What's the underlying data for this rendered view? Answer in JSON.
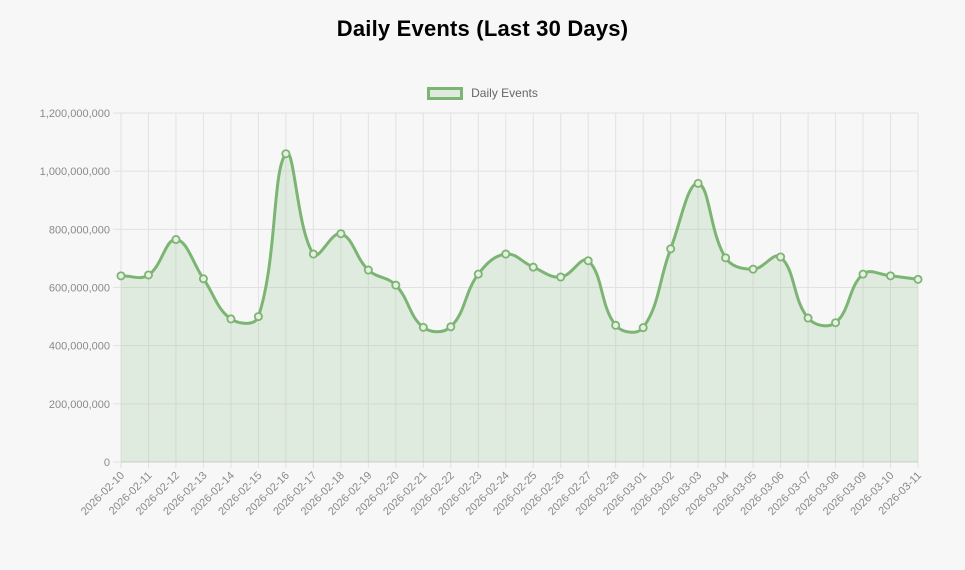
{
  "page": {
    "background": "#f7f7f7"
  },
  "chart_data": {
    "type": "area",
    "title": "Daily Events (Last 30 Days)",
    "legend_position": "top",
    "grid": true,
    "xlabel": "",
    "ylabel": "",
    "ylim": [
      0,
      1200000000
    ],
    "y_tick_step": 200000000,
    "y_tick_labels": [
      "0",
      "200,000,000",
      "400,000,000",
      "600,000,000",
      "800,000,000",
      "1,000,000,000",
      "1,200,000,000"
    ],
    "categories": [
      "2026-02-10",
      "2026-02-11",
      "2026-02-12",
      "2026-02-13",
      "2026-02-14",
      "2026-02-15",
      "2026-02-16",
      "2026-02-17",
      "2026-02-18",
      "2026-02-19",
      "2026-02-20",
      "2026-02-21",
      "2026-02-22",
      "2026-02-23",
      "2026-02-24",
      "2026-02-25",
      "2026-02-26",
      "2026-02-27",
      "2026-02-28",
      "2026-03-01",
      "2026-03-02",
      "2026-03-03",
      "2026-03-04",
      "2026-03-05",
      "2026-03-06",
      "2026-03-07",
      "2026-03-08",
      "2026-03-09",
      "2026-03-10",
      "2026-03-11"
    ],
    "series": [
      {
        "name": "Daily Events",
        "values": [
          640000000,
          643000000,
          765000000,
          630000000,
          492000000,
          500000000,
          1060000000,
          715000000,
          785000000,
          660000000,
          608000000,
          463000000,
          465000000,
          646000000,
          715000000,
          670000000,
          636000000,
          692000000,
          470000000,
          462000000,
          733000000,
          958000000,
          702000000,
          663000000,
          705000000,
          495000000,
          479000000,
          646000000,
          640000000,
          628000000
        ]
      }
    ],
    "colors": {
      "line": "#7cb573",
      "fill": "rgba(124,181,115,0.18)",
      "point_fill": "#e6efe1",
      "grid": "#e2e2e2",
      "axis_line": "#cfcfcf",
      "axis_text": "#8a8a8a",
      "legend_text": "#666666",
      "title_text": "#000000"
    }
  }
}
